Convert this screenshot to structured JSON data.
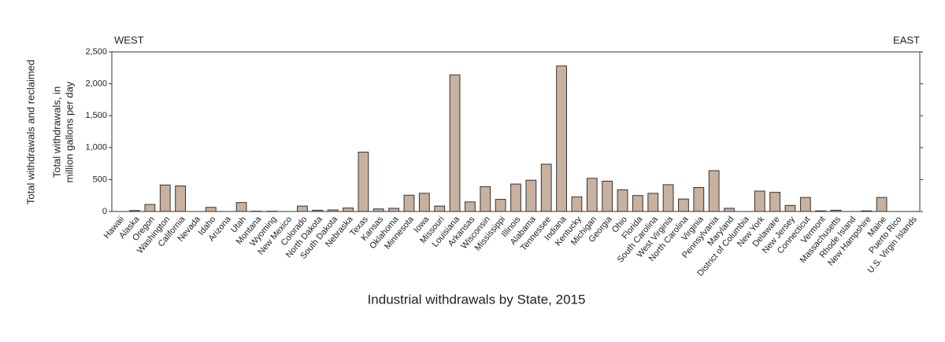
{
  "chart_data": {
    "type": "bar",
    "title": "Industrial withdrawals by State, 2015",
    "y_label_outer": "Total withdrawals and reclaimed",
    "y_label_lines": [
      "Total withdrawals, in",
      "million gallons per day"
    ],
    "left_annotation": "WEST",
    "right_annotation": "EAST",
    "categories": [
      "Hawaii",
      "Alaska",
      "Oregon",
      "Washington",
      "California",
      "Nevada",
      "Idaho",
      "Arizona",
      "Utah",
      "Montana",
      "Wyoming",
      "New Mexico",
      "Colorado",
      "North Dakota",
      "South Dakota",
      "Nebraska",
      "Texas",
      "Kansas",
      "Oklahoma",
      "Minnesota",
      "Iowa",
      "Missouri",
      "Louisiana",
      "Arkansas",
      "Wisconsin",
      "Mississippi",
      "Illinois",
      "Alabama",
      "Tennessee",
      "Indiana",
      "Kentucky",
      "Michigan",
      "Georgia",
      "Ohio",
      "Florida",
      "South Carolina",
      "West Virginia",
      "North Carolina",
      "Virginia",
      "Pennsylvania",
      "Maryland",
      "District of Columbia",
      "New York",
      "Delaware",
      "New Jersey",
      "Connecticut",
      "Vermont",
      "Massachusetts",
      "Rhode Island",
      "New Hampshire",
      "Maine",
      "Puerto Rico",
      "U.S. Virgin Islands"
    ],
    "values": [
      0,
      15,
      110,
      415,
      400,
      0,
      65,
      0,
      140,
      5,
      5,
      0,
      85,
      20,
      25,
      55,
      930,
      40,
      50,
      255,
      285,
      85,
      2140,
      150,
      390,
      190,
      430,
      490,
      740,
      2280,
      230,
      520,
      475,
      340,
      250,
      285,
      420,
      195,
      375,
      640,
      50,
      0,
      320,
      300,
      95,
      220,
      10,
      20,
      0,
      10,
      220,
      0,
      0
    ],
    "color": "#c9b19f",
    "ylim": [
      0,
      2500
    ],
    "yticks": [
      0,
      500,
      {
        "value": 1000,
        "label": "1,000"
      },
      {
        "value": 1500,
        "label": "1,500"
      },
      {
        "value": 2000,
        "label": "2,000"
      },
      {
        "value": 2500,
        "label": "2,500"
      }
    ],
    "grid": false
  }
}
